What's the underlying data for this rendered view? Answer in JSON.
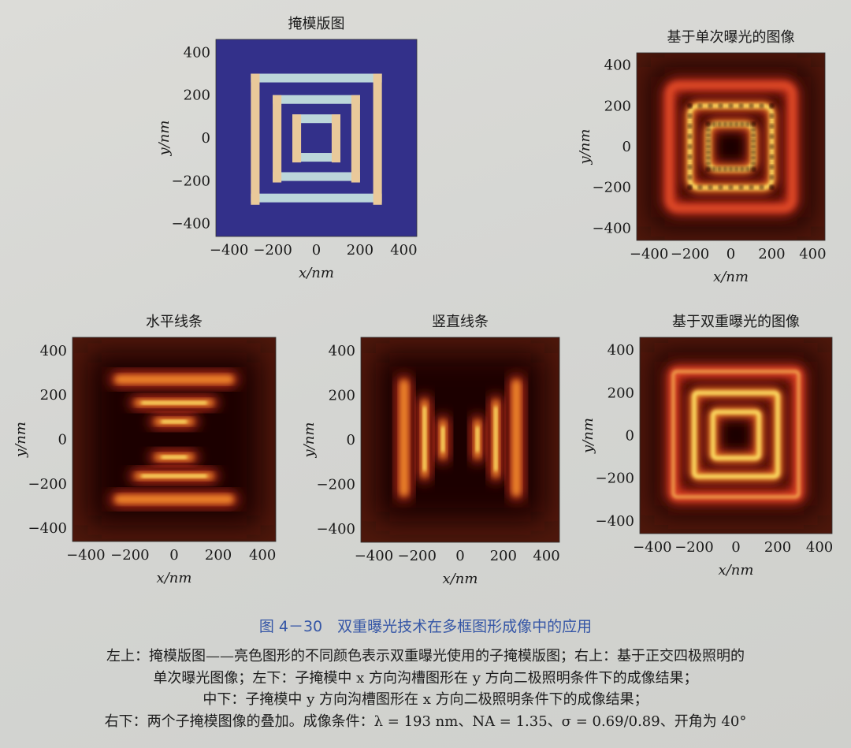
{
  "chart_data": [
    {
      "type": "heatmap",
      "title": "掩模版图",
      "xlabel": "x/nm",
      "ylabel": "y/nm",
      "xlim": [
        -460,
        460
      ],
      "ylim": [
        -460,
        460
      ],
      "xticks": [
        -400,
        -200,
        0,
        200,
        400
      ],
      "yticks": [
        -400,
        -200,
        0,
        200,
        400
      ],
      "pattern": "mask",
      "background": "#33308a",
      "rings": [
        {
          "half_size": 300,
          "width": 40
        },
        {
          "half_size": 200,
          "width": 40
        },
        {
          "half_size": 110,
          "width": 40
        }
      ],
      "colors": {
        "vertical_bars": "#e9c99a",
        "horizontal_bars": "#bcd6da"
      }
    },
    {
      "type": "heatmap",
      "title": "基于单次曝光的图像",
      "xlabel": "x/nm",
      "ylabel": "y/nm",
      "xlim": [
        -460,
        460
      ],
      "ylim": [
        -460,
        460
      ],
      "xticks": [
        -400,
        -200,
        0,
        200,
        400
      ],
      "yticks": [
        -400,
        -200,
        0,
        200,
        400
      ],
      "pattern": "single-exposure",
      "rings": [
        300,
        200,
        110
      ]
    },
    {
      "type": "heatmap",
      "title": "水平线条",
      "xlabel": "x/nm",
      "ylabel": "y/nm",
      "xlim": [
        -460,
        460
      ],
      "ylim": [
        -460,
        460
      ],
      "xticks": [
        -400,
        -200,
        0,
        200,
        400
      ],
      "yticks": [
        -400,
        -200,
        0,
        200,
        400
      ],
      "pattern": "horizontal-lines",
      "bands": [
        {
          "pos": 270,
          "half_len": 290
        },
        {
          "pos": 165,
          "half_len": 200
        },
        {
          "pos": 80,
          "half_len": 110
        }
      ]
    },
    {
      "type": "heatmap",
      "title": "竖直线条",
      "xlabel": "x/nm",
      "ylabel": "y/nm",
      "xlim": [
        -460,
        460
      ],
      "ylim": [
        -460,
        460
      ],
      "xticks": [
        -400,
        -200,
        0,
        200,
        400
      ],
      "yticks": [
        -400,
        -200,
        0,
        200,
        400
      ],
      "pattern": "vertical-lines",
      "bands": [
        {
          "pos": 260,
          "half_len": 290
        },
        {
          "pos": 165,
          "half_len": 200
        },
        {
          "pos": 80,
          "half_len": 110
        }
      ]
    },
    {
      "type": "heatmap",
      "title": "基于双重曝光的图像",
      "xlabel": "x/nm",
      "ylabel": "y/nm",
      "xlim": [
        -460,
        460
      ],
      "ylim": [
        -460,
        460
      ],
      "xticks": [
        -400,
        -200,
        0,
        200,
        400
      ],
      "yticks": [
        -400,
        -200,
        0,
        200,
        400
      ],
      "pattern": "double-exposure",
      "rings": [
        300,
        200,
        110
      ]
    }
  ],
  "colormap": {
    "low": "#1a0604",
    "mid": "#d0301a",
    "high": "#ffe86a"
  },
  "caption": {
    "title": "图 4－30　双重曝光技术在多框图形成像中的应用",
    "lines": [
      "左上：掩模版图——亮色图形的不同颜色表示双重曝光使用的子掩模版图；右上：基于正交四极照明的",
      "单次曝光图像；左下：子掩模中 x 方向沟槽图形在 y 方向二极照明条件下的成像结果；",
      "中下：子掩模中 y 方向沟槽图形在 x 方向二极照明条件下的成像结果；",
      "右下：两个子掩模图像的叠加。成像条件：λ = 193 nm、NA = 1.35、σ = 0.69/0.89、开角为 40°"
    ]
  }
}
